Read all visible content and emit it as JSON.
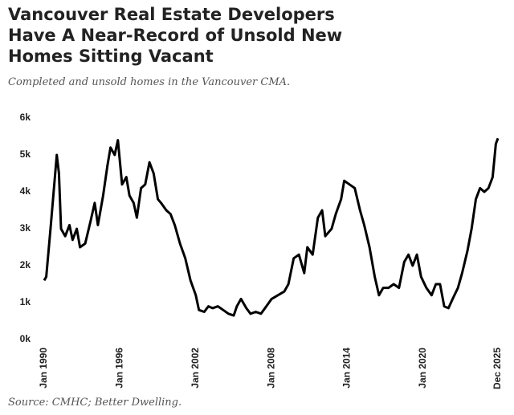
{
  "chart_data": {
    "type": "line",
    "title_lines": [
      "Vancouver Real Estate Developers",
      "Have A Near-Record of Unsold New",
      "Homes Sitting Vacant"
    ],
    "subtitle": "Completed and unsold homes in the Vancouver CMA.",
    "source": "Source: CMHC; Better Dwelling.",
    "x": [
      "1990-01",
      "1990-03",
      "1990-07",
      "1990-10",
      "1991-01",
      "1991-03",
      "1991-05",
      "1991-09",
      "1992-01",
      "1992-04",
      "1992-08",
      "1992-11",
      "1993-04",
      "1993-09",
      "1994-01",
      "1994-04",
      "1994-09",
      "1995-01",
      "1995-04",
      "1995-08",
      "1995-11",
      "1996-03",
      "1996-07",
      "1996-10",
      "1997-02",
      "1997-05",
      "1997-09",
      "1998-01",
      "1998-05",
      "1998-09",
      "1999-01",
      "1999-04",
      "1999-09",
      "2000-01",
      "2000-05",
      "2000-10",
      "2001-03",
      "2001-08",
      "2002-01",
      "2002-04",
      "2002-09",
      "2003-01",
      "2003-05",
      "2003-10",
      "2004-03",
      "2004-08",
      "2005-01",
      "2005-04",
      "2005-08",
      "2006-01",
      "2006-05",
      "2006-10",
      "2007-03",
      "2007-08",
      "2008-01",
      "2008-07",
      "2009-01",
      "2009-05",
      "2009-10",
      "2010-03",
      "2010-08",
      "2010-11",
      "2011-04",
      "2011-09",
      "2012-01",
      "2012-04",
      "2012-10",
      "2013-02",
      "2013-07",
      "2013-10",
      "2014-03",
      "2014-08",
      "2015-01",
      "2015-05",
      "2015-10",
      "2016-03",
      "2016-07",
      "2016-11",
      "2017-04",
      "2017-09",
      "2018-02",
      "2018-07",
      "2018-11",
      "2019-03",
      "2019-07",
      "2019-11",
      "2020-04",
      "2020-09",
      "2021-01",
      "2021-05",
      "2021-09",
      "2022-01",
      "2022-05",
      "2022-10",
      "2023-02",
      "2023-07",
      "2023-11",
      "2024-03",
      "2024-07",
      "2024-11",
      "2025-03",
      "2025-07",
      "2025-10",
      "2025-12"
    ],
    "series": [
      {
        "color": "#000000",
        "values": [
          1600,
          1700,
          3000,
          4000,
          5000,
          4500,
          3000,
          2800,
          3100,
          2700,
          3000,
          2500,
          2600,
          3200,
          3700,
          3100,
          3900,
          4700,
          5200,
          5000,
          5400,
          4200,
          4400,
          3900,
          3700,
          3300,
          4100,
          4200,
          4800,
          4500,
          3800,
          3700,
          3500,
          3400,
          3100,
          2600,
          2200,
          1600,
          1200,
          800,
          750,
          900,
          850,
          900,
          800,
          700,
          650,
          900,
          1100,
          850,
          700,
          750,
          700,
          900,
          1100,
          1200,
          1300,
          1500,
          2200,
          2300,
          1800,
          2500,
          2300,
          3300,
          3500,
          2800,
          3000,
          3400,
          3800,
          4300,
          4200,
          4100,
          3500,
          3100,
          2500,
          1700,
          1200,
          1400,
          1400,
          1500,
          1400,
          2100,
          2300,
          2000,
          2300,
          1700,
          1400,
          1200,
          1500,
          1500,
          900,
          850,
          1100,
          1400,
          1800,
          2400,
          3000,
          3800,
          4100,
          4000,
          4100,
          4400,
          5300,
          5450
        ]
      }
    ],
    "xlim": [
      "1990-01",
      "2025-12"
    ],
    "xticks": [
      {
        "value": "1990-01",
        "label": "Jan 1990"
      },
      {
        "value": "1996-01",
        "label": "Jan 1996"
      },
      {
        "value": "2002-01",
        "label": "Jan 2002"
      },
      {
        "value": "2008-01",
        "label": "Jan 2008"
      },
      {
        "value": "2014-01",
        "label": "Jan 2014"
      },
      {
        "value": "2020-01",
        "label": "Jan 2020"
      },
      {
        "value": "2025-12",
        "label": "Dec 2025"
      }
    ],
    "ylim": [
      0,
      6000
    ],
    "yticks": [
      {
        "value": 0,
        "label": "0k"
      },
      {
        "value": 1000,
        "label": "1k"
      },
      {
        "value": 2000,
        "label": "2k"
      },
      {
        "value": 3000,
        "label": "3k"
      },
      {
        "value": 4000,
        "label": "4k"
      },
      {
        "value": 5000,
        "label": "5k"
      },
      {
        "value": 6000,
        "label": "6k"
      }
    ]
  }
}
